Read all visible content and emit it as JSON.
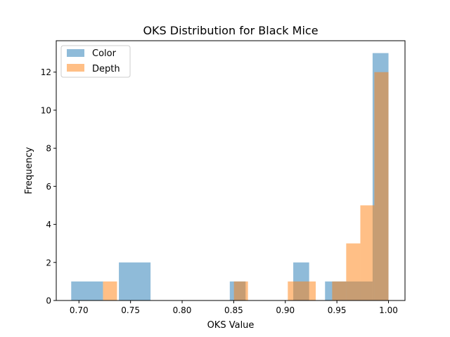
{
  "chart_data": {
    "type": "histogram",
    "title": "OKS Distribution for Black Mice",
    "xlabel": "OKS Value",
    "ylabel": "Frequency",
    "xlim": [
      0.678,
      1.016
    ],
    "ylim": [
      0,
      13.65
    ],
    "xticks": [
      {
        "value": 0.7,
        "label": "0.70"
      },
      {
        "value": 0.75,
        "label": "0.75"
      },
      {
        "value": 0.8,
        "label": "0.80"
      },
      {
        "value": 0.85,
        "label": "0.85"
      },
      {
        "value": 0.9,
        "label": "0.90"
      },
      {
        "value": 0.95,
        "label": "0.95"
      },
      {
        "value": 1.0,
        "label": "1.00"
      }
    ],
    "yticks": [
      {
        "value": 0,
        "label": "0"
      },
      {
        "value": 2,
        "label": "2"
      },
      {
        "value": 4,
        "label": "4"
      },
      {
        "value": 6,
        "label": "6"
      },
      {
        "value": 8,
        "label": "8"
      },
      {
        "value": 10,
        "label": "10"
      },
      {
        "value": 12,
        "label": "12"
      }
    ],
    "legend_position": "top-left",
    "grid": false,
    "series": [
      {
        "name": "Color",
        "color": "#1f77b4",
        "alpha": 0.5,
        "bins": [
          {
            "x0": 0.6925,
            "x1": 0.7233,
            "count": 1
          },
          {
            "x0": 0.7387,
            "x1": 0.7694,
            "count": 2
          },
          {
            "x0": 0.8462,
            "x1": 0.8615,
            "count": 1
          },
          {
            "x0": 0.9077,
            "x1": 0.9231,
            "count": 2
          },
          {
            "x0": 0.9385,
            "x1": 0.9846,
            "count": 1
          },
          {
            "x0": 0.9846,
            "x1": 1.0,
            "count": 13
          }
        ]
      },
      {
        "name": "Depth",
        "color": "#ff7f0e",
        "alpha": 0.5,
        "bins": [
          {
            "x0": 0.7233,
            "x1": 0.7369,
            "count": 1
          },
          {
            "x0": 0.8502,
            "x1": 0.8638,
            "count": 1
          },
          {
            "x0": 0.9024,
            "x1": 0.9295,
            "count": 1
          },
          {
            "x0": 0.9454,
            "x1": 0.959,
            "count": 1
          },
          {
            "x0": 0.959,
            "x1": 0.9727,
            "count": 3
          },
          {
            "x0": 0.9727,
            "x1": 0.9863,
            "count": 5
          },
          {
            "x0": 0.9863,
            "x1": 1.0,
            "count": 12
          }
        ]
      }
    ]
  }
}
